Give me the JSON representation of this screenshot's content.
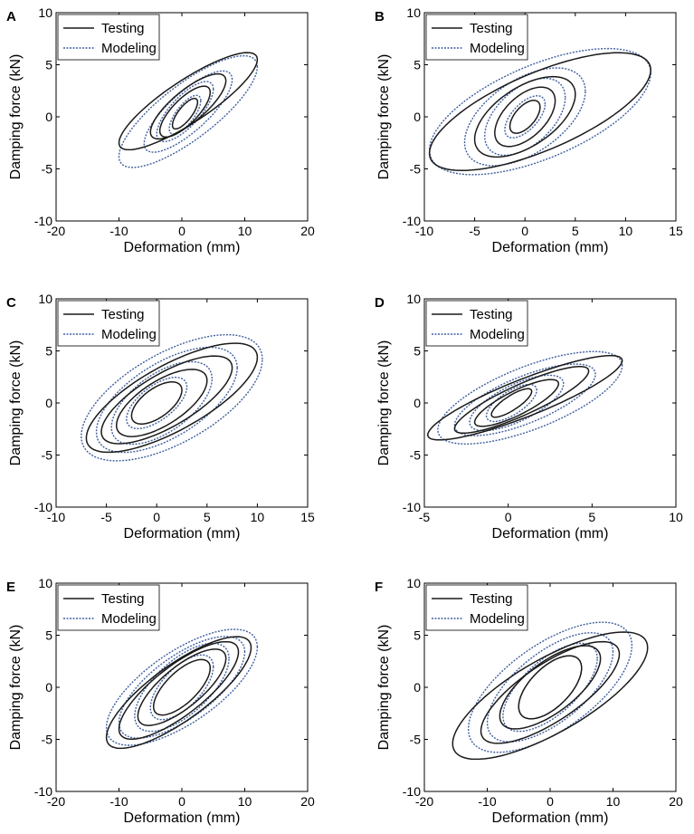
{
  "legend": {
    "testing": "Testing",
    "modeling": "Modeling"
  },
  "colors": {
    "testing": "#1a1a1a",
    "modeling": "#3f5f9f",
    "axis": "#000000"
  },
  "chart_data": [
    {
      "type": "line",
      "panel": "A",
      "xlabel": "Deformation (mm)",
      "ylabel": "Damping force (kN)",
      "xlim": [
        -20,
        20
      ],
      "ylim": [
        -10,
        10
      ],
      "xticks": [
        "-20",
        "-10",
        "0",
        "10",
        "20"
      ],
      "yticks": [
        "-10",
        "-5",
        "0",
        "5",
        "10"
      ],
      "series": [
        {
          "name": "Testing",
          "loops": [
            {
              "cx": 1,
              "cy": 1.5,
              "dx": 11,
              "dy": 6.5,
              "skew": 1.5
            },
            {
              "cx": 1,
              "cy": 1,
              "dx": 6,
              "dy": 4,
              "skew": 1.2
            },
            {
              "cx": 0.5,
              "cy": 0.5,
              "dx": 4,
              "dy": 3,
              "skew": 1.0
            },
            {
              "cx": 0.5,
              "cy": 0.3,
              "dx": 2,
              "dy": 1.8,
              "skew": 0.6
            }
          ]
        },
        {
          "name": "Modeling",
          "loops": [
            {
              "cx": 1,
              "cy": 0.5,
              "dx": 11,
              "dy": 7,
              "skew": 2.0
            },
            {
              "cx": 1,
              "cy": 0.5,
              "dx": 7,
              "dy": 5,
              "skew": 1.5
            },
            {
              "cx": 0.5,
              "cy": 0.5,
              "dx": 4.5,
              "dy": 3.5,
              "skew": 1.2
            },
            {
              "cx": 0.5,
              "cy": 0.2,
              "dx": 2.5,
              "dy": 2.2,
              "skew": 0.8
            }
          ]
        }
      ]
    },
    {
      "type": "line",
      "panel": "B",
      "xlabel": "Deformation (mm)",
      "ylabel": "Damping force (kN)",
      "xlim": [
        -10,
        15
      ],
      "ylim": [
        -10,
        10
      ],
      "xticks": [
        "-10",
        "-5",
        "0",
        "5",
        "10",
        "15"
      ],
      "yticks": [
        "-10",
        "-5",
        "0",
        "5",
        "10"
      ],
      "series": [
        {
          "name": "Testing",
          "loops": [
            {
              "cx": 1.5,
              "cy": 0.5,
              "dx": 11,
              "dy": 6.5,
              "skew": 2.5
            },
            {
              "cx": 0,
              "cy": 0,
              "dx": 5,
              "dy": 3.5,
              "skew": 2.0
            },
            {
              "cx": 0,
              "cy": 0,
              "dx": 3,
              "dy": 2.5,
              "skew": 1.5
            },
            {
              "cx": 0,
              "cy": 0,
              "dx": 1.5,
              "dy": 1.5,
              "skew": 0.8
            }
          ]
        },
        {
          "name": "Modeling",
          "loops": [
            {
              "cx": 1.5,
              "cy": 0.5,
              "dx": 11,
              "dy": 6,
              "skew": 3.0
            },
            {
              "cx": 0,
              "cy": 0,
              "dx": 6,
              "dy": 4,
              "skew": 2.5
            },
            {
              "cx": 0,
              "cy": 0,
              "dx": 4,
              "dy": 3,
              "skew": 2.0
            },
            {
              "cx": 0,
              "cy": 0,
              "dx": 2,
              "dy": 2,
              "skew": 1.0
            }
          ]
        }
      ]
    },
    {
      "type": "line",
      "panel": "C",
      "xlabel": "Deformation (mm)",
      "ylabel": "Damping force (kN)",
      "xlim": [
        -10,
        15
      ],
      "ylim": [
        -10,
        10
      ],
      "xticks": [
        "-10",
        "-5",
        "0",
        "5",
        "10",
        "15"
      ],
      "yticks": [
        "-10",
        "-5",
        "0",
        "5",
        "10"
      ],
      "series": [
        {
          "name": "Testing",
          "loops": [
            {
              "cx": 1.5,
              "cy": 0.5,
              "dx": 8.5,
              "dy": 6.3,
              "skew": 2.2
            },
            {
              "cx": 1,
              "cy": 0.3,
              "dx": 6.5,
              "dy": 5,
              "skew": 1.8
            },
            {
              "cx": 0.5,
              "cy": 0,
              "dx": 4.5,
              "dy": 3.5,
              "skew": 1.5
            },
            {
              "cx": 0,
              "cy": 0,
              "dx": 2.5,
              "dy": 2,
              "skew": 1.0
            }
          ]
        },
        {
          "name": "Modeling",
          "loops": [
            {
              "cx": 1.5,
              "cy": 0.5,
              "dx": 9,
              "dy": 6,
              "skew": 3.0
            },
            {
              "cx": 1,
              "cy": 0.3,
              "dx": 7,
              "dy": 5,
              "skew": 2.5
            },
            {
              "cx": 0.5,
              "cy": 0,
              "dx": 5,
              "dy": 3.8,
              "skew": 2.0
            },
            {
              "cx": 0,
              "cy": 0,
              "dx": 3,
              "dy": 2.5,
              "skew": 1.2
            }
          ]
        }
      ]
    },
    {
      "type": "line",
      "panel": "D",
      "xlabel": "Deformation (mm)",
      "ylabel": "Damping force (kN)",
      "xlim": [
        -5,
        10
      ],
      "ylim": [
        -10,
        10
      ],
      "xticks": [
        "-5",
        "0",
        "5",
        "10"
      ],
      "yticks": [
        "-10",
        "-5",
        "0",
        "5",
        "10"
      ],
      "series": [
        {
          "name": "Testing",
          "loops": [
            {
              "cx": 1,
              "cy": 0.5,
              "dx": 5.8,
              "dy": 5.8,
              "skew": 1.2
            },
            {
              "cx": 0.8,
              "cy": 0.3,
              "dx": 4,
              "dy": 4.5,
              "skew": 1.0
            },
            {
              "cx": 0.5,
              "cy": 0,
              "dx": 2.5,
              "dy": 3,
              "skew": 0.8
            },
            {
              "cx": 0.2,
              "cy": 0,
              "dx": 1.2,
              "dy": 1.8,
              "skew": 0.5
            }
          ]
        },
        {
          "name": "Modeling",
          "loops": [
            {
              "cx": 1.3,
              "cy": 0.5,
              "dx": 5.5,
              "dy": 5,
              "skew": 2.0
            },
            {
              "cx": 1,
              "cy": 0.3,
              "dx": 4.2,
              "dy": 4,
              "skew": 1.5
            },
            {
              "cx": 0.5,
              "cy": 0,
              "dx": 2.8,
              "dy": 3,
              "skew": 1.2
            },
            {
              "cx": 0.2,
              "cy": 0,
              "dx": 1.5,
              "dy": 2,
              "skew": 0.8
            }
          ]
        }
      ]
    },
    {
      "type": "line",
      "panel": "E",
      "xlabel": "Deformation (mm)",
      "ylabel": "Damping force (kN)",
      "xlim": [
        -20,
        20
      ],
      "ylim": [
        -10,
        10
      ],
      "xticks": [
        "-20",
        "-10",
        "0",
        "10",
        "20"
      ],
      "yticks": [
        "-10",
        "-5",
        "0",
        "5",
        "10"
      ],
      "series": [
        {
          "name": "Testing",
          "loops": [
            {
              "cx": -0.5,
              "cy": -0.5,
              "dx": 11.5,
              "dy": 7,
              "skew": 2.0
            },
            {
              "cx": -0.5,
              "cy": -0.3,
              "dx": 9.5,
              "dy": 6,
              "skew": 1.8
            },
            {
              "cx": 0,
              "cy": 0,
              "dx": 7,
              "dy": 4.5,
              "skew": 1.5
            },
            {
              "cx": 0,
              "cy": 0,
              "dx": 4.5,
              "dy": 3,
              "skew": 1.2
            }
          ]
        },
        {
          "name": "Modeling",
          "loops": [
            {
              "cx": 0,
              "cy": 0,
              "dx": 12,
              "dy": 6.3,
              "skew": 2.5
            },
            {
              "cx": 0,
              "cy": 0,
              "dx": 10,
              "dy": 5.5,
              "skew": 2.2
            },
            {
              "cx": 0,
              "cy": 0,
              "dx": 7.5,
              "dy": 4.5,
              "skew": 2.0
            },
            {
              "cx": 0,
              "cy": 0,
              "dx": 5,
              "dy": 3.2,
              "skew": 1.5
            }
          ]
        }
      ]
    },
    {
      "type": "line",
      "panel": "F",
      "xlabel": "Deformation (mm)",
      "ylabel": "Damping force (kN)",
      "xlim": [
        -20,
        20
      ],
      "ylim": [
        -10,
        10
      ],
      "xticks": [
        "-20",
        "-10",
        "0",
        "10",
        "20"
      ],
      "yticks": [
        "-10",
        "-5",
        "0",
        "5",
        "10"
      ],
      "series": [
        {
          "name": "Testing",
          "loops": [
            {
              "cx": 0,
              "cy": -0.8,
              "dx": 15.5,
              "dy": 7.5,
              "skew": 2.5
            },
            {
              "cx": 0,
              "cy": -0.5,
              "dx": 11,
              "dy": 6,
              "skew": 2.0
            },
            {
              "cx": 0,
              "cy": 0,
              "dx": 8,
              "dy": 4.5,
              "skew": 1.8
            },
            {
              "cx": 0,
              "cy": 0,
              "dx": 5,
              "dy": 3,
              "skew": 1.5
            }
          ]
        },
        {
          "name": "Modeling",
          "loops": [
            {
              "cx": 0,
              "cy": 0,
              "dx": 13,
              "dy": 6.5,
              "skew": 3.0
            },
            {
              "cx": 0,
              "cy": 0,
              "dx": 10,
              "dy": 5.5,
              "skew": 2.5
            },
            {
              "cx": 0,
              "cy": 0,
              "dx": 7.5,
              "dy": 4.5,
              "skew": 2.0
            },
            {
              "cx": 0,
              "cy": 0,
              "dx": 5,
              "dy": 3,
              "skew": 1.5
            }
          ]
        }
      ]
    }
  ]
}
